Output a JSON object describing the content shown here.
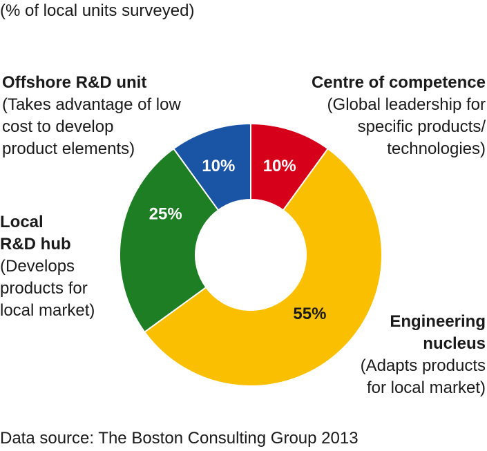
{
  "subtitle": "(% of local units surveyed)",
  "source": "Data source: The Boston Consulting Group 2013",
  "labels": {
    "offshore": {
      "head": "Offshore R&D unit",
      "desc": [
        "(Takes advantage of low",
        "cost to develop",
        "product elements)"
      ]
    },
    "centre": {
      "head": "Centre of competence",
      "desc": [
        "(Global leadership for",
        "specific products/",
        "technologies)"
      ]
    },
    "local": {
      "head": [
        "Local",
        "R&D hub"
      ],
      "desc": [
        "(Develops",
        "products for",
        "local market)"
      ]
    },
    "engineering": {
      "head": [
        "Engineering",
        "nucleus"
      ],
      "desc": [
        "(Adapts products",
        "for local market)"
      ]
    }
  },
  "chart_data": {
    "type": "pie",
    "donut": true,
    "title": "",
    "slices": [
      {
        "name": "Centre of competence",
        "value": 10,
        "label": "10%",
        "color": "#d7001a",
        "label_color": "#ffffff"
      },
      {
        "name": "Engineering nucleus",
        "value": 55,
        "label": "55%",
        "color": "#fac000",
        "label_color": "#1a1a1a"
      },
      {
        "name": "Local R&D hub",
        "value": 25,
        "label": "25%",
        "color": "#1e7e23",
        "label_color": "#ffffff"
      },
      {
        "name": "Offshore R&D unit",
        "value": 10,
        "label": "10%",
        "color": "#1a55a5",
        "label_color": "#ffffff"
      }
    ]
  }
}
